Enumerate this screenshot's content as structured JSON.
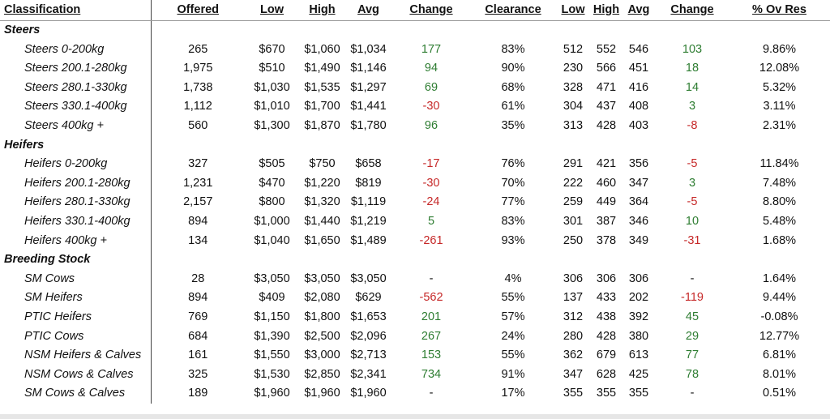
{
  "headers": [
    "Classification",
    "Offered",
    "Low",
    "High",
    "Avg",
    "Change",
    "Clearance",
    "Low",
    "High",
    "Avg",
    "Change",
    "% Ov Res"
  ],
  "groups": [
    {
      "name": "Steers",
      "rows": [
        [
          "Steers 0-200kg",
          "265",
          "$670",
          "$1,060",
          "$1,034",
          "177",
          "83%",
          "512",
          "552",
          "546",
          "103",
          "9.86%"
        ],
        [
          "Steers 200.1-280kg",
          "1,975",
          "$510",
          "$1,490",
          "$1,146",
          "94",
          "90%",
          "230",
          "566",
          "451",
          "18",
          "12.08%"
        ],
        [
          "Steers 280.1-330kg",
          "1,738",
          "$1,030",
          "$1,535",
          "$1,297",
          "69",
          "68%",
          "328",
          "471",
          "416",
          "14",
          "5.32%"
        ],
        [
          "Steers 330.1-400kg",
          "1,112",
          "$1,010",
          "$1,700",
          "$1,441",
          "-30",
          "61%",
          "304",
          "437",
          "408",
          "3",
          "3.11%"
        ],
        [
          "Steers 400kg +",
          "560",
          "$1,300",
          "$1,870",
          "$1,780",
          "96",
          "35%",
          "313",
          "428",
          "403",
          "-8",
          "2.31%"
        ]
      ]
    },
    {
      "name": "Heifers",
      "rows": [
        [
          "Heifers 0-200kg",
          "327",
          "$505",
          "$750",
          "$658",
          "-17",
          "76%",
          "291",
          "421",
          "356",
          "-5",
          "11.84%"
        ],
        [
          "Heifers 200.1-280kg",
          "1,231",
          "$470",
          "$1,220",
          "$819",
          "-30",
          "70%",
          "222",
          "460",
          "347",
          "3",
          "7.48%"
        ],
        [
          "Heifers 280.1-330kg",
          "2,157",
          "$800",
          "$1,320",
          "$1,119",
          "-24",
          "77%",
          "259",
          "449",
          "364",
          "-5",
          "8.80%"
        ],
        [
          "Heifers 330.1-400kg",
          "894",
          "$1,000",
          "$1,440",
          "$1,219",
          "5",
          "83%",
          "301",
          "387",
          "346",
          "10",
          "5.48%"
        ],
        [
          "Heifers 400kg +",
          "134",
          "$1,040",
          "$1,650",
          "$1,489",
          "-261",
          "93%",
          "250",
          "378",
          "349",
          "-31",
          "1.68%"
        ]
      ]
    },
    {
      "name": "Breeding Stock",
      "rows": [
        [
          "SM Cows",
          "28",
          "$3,050",
          "$3,050",
          "$3,050",
          "-",
          "4%",
          "306",
          "306",
          "306",
          "-",
          "1.64%"
        ],
        [
          "SM Heifers",
          "894",
          "$409",
          "$2,080",
          "$629",
          "-562",
          "55%",
          "137",
          "433",
          "202",
          "-119",
          "9.44%"
        ],
        [
          "PTIC Heifers",
          "769",
          "$1,150",
          "$1,800",
          "$1,653",
          "201",
          "57%",
          "312",
          "438",
          "392",
          "45",
          "-0.08%"
        ],
        [
          "PTIC Cows",
          "684",
          "$1,390",
          "$2,500",
          "$2,096",
          "267",
          "24%",
          "280",
          "428",
          "380",
          "29",
          "12.77%"
        ],
        [
          "NSM Heifers & Calves",
          "161",
          "$1,550",
          "$3,000",
          "$2,713",
          "153",
          "55%",
          "362",
          "679",
          "613",
          "77",
          "6.81%"
        ],
        [
          "NSM Cows & Calves",
          "325",
          "$1,530",
          "$2,850",
          "$2,341",
          "734",
          "91%",
          "347",
          "628",
          "425",
          "78",
          "8.01%"
        ],
        [
          "SM Cows & Calves",
          "189",
          "$1,960",
          "$1,960",
          "$1,960",
          "-",
          "17%",
          "355",
          "355",
          "355",
          "-",
          "0.51%"
        ]
      ]
    }
  ],
  "colors": {
    "positive": "#2e7d32",
    "negative": "#c62828",
    "neutral": "#111111"
  }
}
